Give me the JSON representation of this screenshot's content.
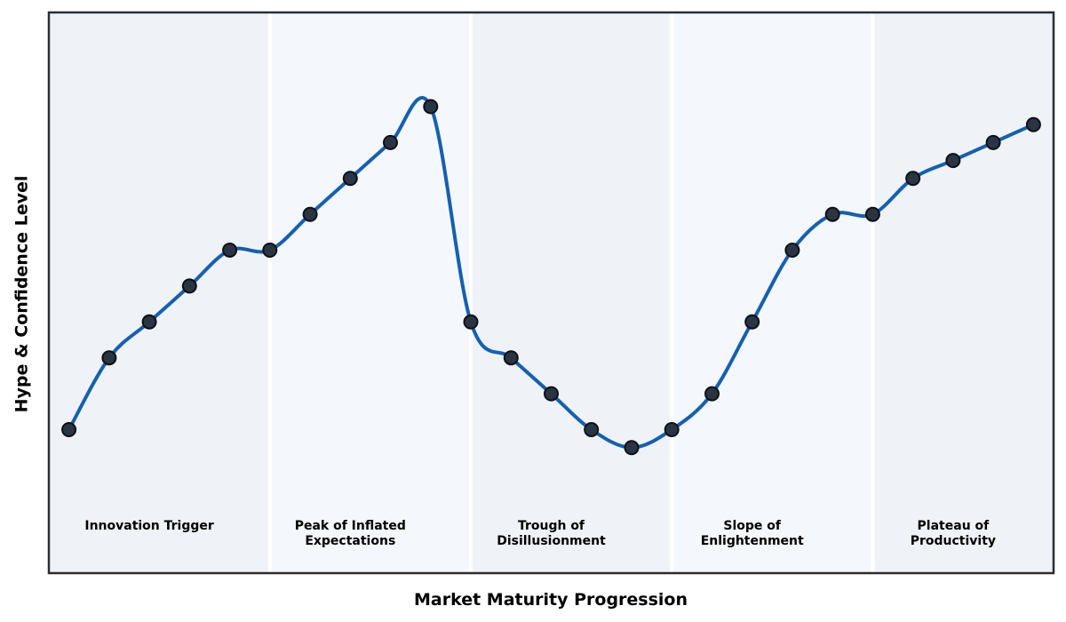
{
  "figure": {
    "background": "#ffffff"
  },
  "chart_data": {
    "type": "line",
    "xlabel": "Market Maturity Progression",
    "ylabel": "Hype & Confidence Level",
    "x": [
      0,
      1,
      2,
      3,
      4,
      5,
      6,
      7,
      8,
      9,
      10,
      11,
      12,
      13,
      14,
      15,
      16,
      17,
      18,
      19,
      20,
      21,
      22,
      23,
      24
    ],
    "values": [
      12,
      28,
      36,
      44,
      52,
      52,
      60,
      68,
      76,
      84,
      36,
      28,
      20,
      12,
      8,
      12,
      20,
      36,
      52,
      60,
      60,
      68,
      72,
      76,
      80
    ],
    "xlim": [
      -0.5,
      24.5
    ],
    "ylim": [
      -20,
      105
    ],
    "grid": false,
    "legend": "none",
    "axis_ticks": "none",
    "curve_style": "smooth-spline",
    "phases": [
      {
        "label": "Innovation Trigger",
        "x_start": -0.5,
        "x_end": 5,
        "label_x": 2
      },
      {
        "label": "Peak of Inflated\nExpectations",
        "x_start": 5,
        "x_end": 10,
        "label_x": 7
      },
      {
        "label": "Trough of\nDisillusionment",
        "x_start": 10,
        "x_end": 15,
        "label_x": 12
      },
      {
        "label": "Slope of\nEnlightenment",
        "x_start": 15,
        "x_end": 20,
        "label_x": 17
      },
      {
        "label": "Plateau of\nProductivity",
        "x_start": 20,
        "x_end": 24.5,
        "label_x": 22
      }
    ],
    "phase_label_y": -10,
    "colors": {
      "band": "#eff3f8",
      "band_alt": "#f4f7fb",
      "separator": "#ffffff",
      "line": "#1560b0",
      "marker_fill": "#2b3442",
      "marker_edge": "#0d1117",
      "plot_border": "#2b2d33",
      "text": "#000000"
    }
  }
}
